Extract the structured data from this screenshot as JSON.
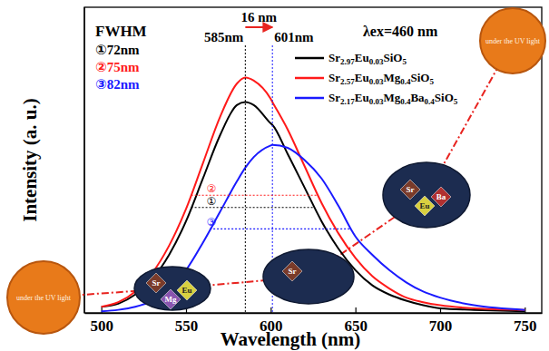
{
  "chart_data": {
    "type": "line",
    "xlabel": "Wavelength (nm)",
    "ylabel": "Intensity (a. u.)",
    "xlim": [
      490,
      760
    ],
    "xticks": [
      500,
      550,
      600,
      650,
      700,
      750
    ],
    "ylim": [
      0,
      1
    ],
    "tick_labels": "x",
    "grid": false,
    "legend": "upper right",
    "x": [
      500,
      510,
      520,
      530,
      540,
      550,
      560,
      570,
      580,
      585,
      590,
      600,
      601,
      610,
      620,
      630,
      640,
      650,
      660,
      670,
      680,
      690,
      700,
      720,
      750
    ],
    "series": [
      {
        "name": "Sr2.97Eu0.03SiO5",
        "color": "#000000",
        "values": [
          0.02,
          0.03,
          0.06,
          0.11,
          0.19,
          0.3,
          0.44,
          0.58,
          0.68,
          0.69,
          0.68,
          0.62,
          0.615,
          0.52,
          0.41,
          0.3,
          0.21,
          0.14,
          0.09,
          0.06,
          0.04,
          0.025,
          0.015,
          0.01,
          0.005
        ]
      },
      {
        "name": "Sr2.57Eu0.03Mg0.4SiO5",
        "color": "#ff1a1a",
        "values": [
          0.02,
          0.035,
          0.07,
          0.13,
          0.22,
          0.34,
          0.49,
          0.64,
          0.75,
          0.77,
          0.76,
          0.7,
          0.69,
          0.6,
          0.48,
          0.36,
          0.26,
          0.18,
          0.12,
          0.08,
          0.05,
          0.035,
          0.025,
          0.015,
          0.01
        ]
      },
      {
        "name": "Sr2.17Eu0.03Mg0.4Ba0.4SiO5",
        "color": "#1a1aff",
        "values": [
          0.005,
          0.01,
          0.02,
          0.04,
          0.08,
          0.14,
          0.23,
          0.33,
          0.43,
          0.475,
          0.51,
          0.548,
          0.55,
          0.54,
          0.5,
          0.44,
          0.35,
          0.25,
          0.19,
          0.14,
          0.1,
          0.07,
          0.05,
          0.025,
          0.01
        ]
      }
    ],
    "excitation_label": "λex=460 nm",
    "fwhm_title": "FWHM",
    "fwhm": [
      {
        "label": "①72nm",
        "tag": "①",
        "color": "#000000",
        "y": 0.345,
        "x": [
          553,
          626
        ]
      },
      {
        "label": "②75nm",
        "tag": "②",
        "color": "#ff1a1a",
        "y": 0.385,
        "x": [
          553,
          628
        ]
      },
      {
        "label": "③82nm",
        "tag": "③",
        "color": "#1a1aff",
        "y": 0.275,
        "x": [
          564,
          647
        ]
      }
    ],
    "peak_lines": [
      585,
      601
    ],
    "peak_labels": [
      "585nm",
      "601nm"
    ],
    "shift_label": "16 nm",
    "insets": [
      "under the UV light",
      "under the UV light"
    ],
    "atoms": [
      [
        "Sr",
        "Eu",
        "Mg"
      ],
      [
        "Sr"
      ],
      [
        "Sr",
        "Ba",
        "Eu"
      ]
    ]
  }
}
